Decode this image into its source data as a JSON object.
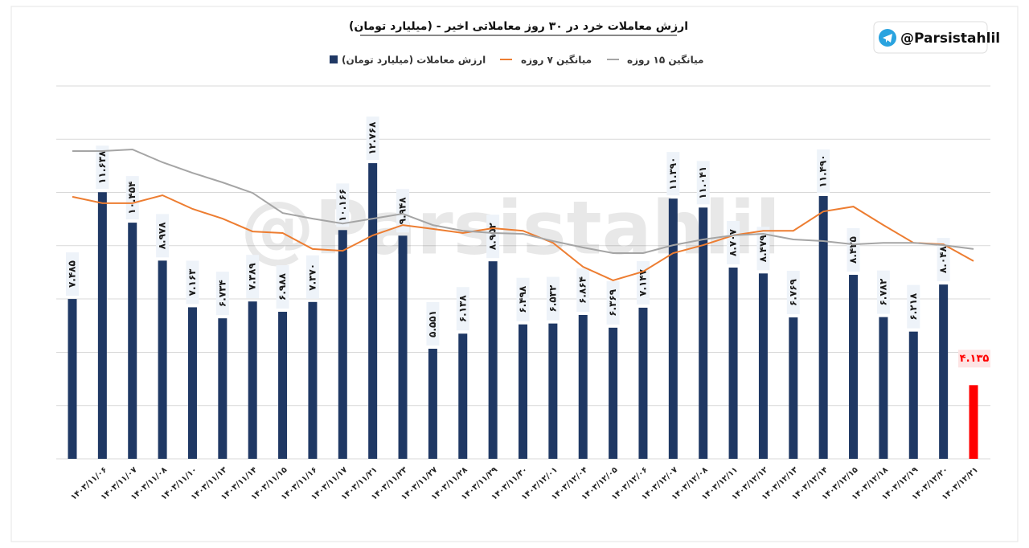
{
  "badge": "@Parsistahlil",
  "watermark": "@Parsistahlil",
  "chart_data": {
    "type": "bar",
    "title": "ارزش معاملات خرد در ۳۰ روز معاملاتی اخیر - (میلیارد تومان)",
    "categories": [
      null,
      "۱۴۰۳/۱۱/۰۶",
      "۱۴۰۳/۱۱/۰۷",
      "۱۴۰۳/۱۱/۰۸",
      "۱۴۰۳/۱۱/۱۰",
      "۱۴۰۳/۱۱/۱۳",
      "۱۴۰۳/۱۱/۱۴",
      "۱۴۰۳/۱۱/۱۵",
      "۱۴۰۳/۱۱/۱۶",
      "۱۴۰۳/۱۱/۱۷",
      "۱۴۰۳/۱۱/۲۱",
      "۱۴۰۳/۱۱/۲۳",
      "۱۴۰۳/۱۱/۲۷",
      "۱۴۰۳/۱۱/۲۸",
      "۱۴۰۳/۱۱/۲۹",
      "۱۴۰۳/۱۱/۳۰",
      "۱۴۰۳/۱۲/۰۱",
      "۱۴۰۳/۱۲/۰۴",
      "۱۴۰۳/۱۲/۰۵",
      "۱۴۰۳/۱۲/۰۶",
      "۱۴۰۳/۱۲/۰۷",
      "۱۴۰۳/۱۲/۰۸",
      "۱۴۰۳/۱۲/۱۱",
      "۱۴۰۳/۱۲/۱۲",
      "۱۴۰۳/۱۲/۱۳",
      "۱۴۰۳/۱۲/۱۴",
      "۱۴۰۳/۱۲/۱۵",
      "۱۴۰۳/۱۲/۱۸",
      "۱۴۰۳/۱۲/۱۹",
      "۱۴۰۳/۱۲/۲۰",
      "۱۴۰۳/۱۲/۲۱"
    ],
    "series": [
      {
        "name": "ارزش معاملات (میلیارد تومان)",
        "type": "bar",
        "color": "#1f3864",
        "colors": [
          "#1f3864",
          "#1f3864",
          "#1f3864",
          "#1f3864",
          "#1f3864",
          "#1f3864",
          "#1f3864",
          "#1f3864",
          "#1f3864",
          "#1f3864",
          "#1f3864",
          "#1f3864",
          "#1f3864",
          "#1f3864",
          "#1f3864",
          "#1f3864",
          "#1f3864",
          "#1f3864",
          "#1f3864",
          "#1f3864",
          "#1f3864",
          "#1f3864",
          "#1f3864",
          "#1f3864",
          "#1f3864",
          "#1f3864",
          "#1f3864",
          "#1f3864",
          "#1f3864",
          "#1f3864",
          "#ff0000"
        ],
        "values": [
          7.485,
          11.638,
          10.454,
          8.978,
          7.163,
          6.734,
          7.389,
          6.988,
          7.37,
          10.166,
          12.768,
          9.948,
          5.551,
          6.138,
          8.952,
          6.498,
          6.532,
          6.864,
          6.369,
          7.147,
          11.39,
          11.041,
          8.707,
          8.479,
          6.769,
          11.49,
          8.425,
          6.782,
          6.218,
          8.048,
          4.135
        ],
        "value_labels": [
          "۷.۴۸۵",
          "۱۱.۶۳۸",
          "۱۰.۴۵۴",
          "۸.۹۷۸",
          "۷.۱۶۳",
          "۶.۷۳۴",
          "۷.۳۸۹",
          "۶.۹۸۸",
          "۷.۳۷۰",
          "۱۰.۱۶۶",
          "۱۲.۷۶۸",
          "۹.۹۴۸",
          "۵.۵۵۱",
          "۶.۱۳۸",
          "۸.۹۵۲",
          "۶.۴۹۸",
          "۶.۵۳۲",
          "۶.۸۶۴",
          "۶.۳۶۹",
          "۷.۱۴۷",
          "۱۱.۳۹۰",
          "۱۱.۰۴۱",
          "۸.۷۰۷",
          "۸.۴۷۹",
          "۶.۷۶۹",
          "۱۱.۴۹۰",
          "۸.۴۲۵",
          "۶.۷۸۲",
          "۶.۲۱۸",
          "۸.۰۴۸",
          "۴.۱۳۵"
        ]
      },
      {
        "name": "میانگین ۷ روزه",
        "type": "line",
        "color": "#ed7d31",
        "values": [
          11.46,
          11.21,
          11.21,
          11.52,
          10.99,
          10.61,
          10.11,
          10.05,
          9.43,
          9.36,
          9.96,
          10.36,
          10.21,
          10.05,
          10.24,
          10.14,
          9.67,
          8.74,
          8.21,
          8.55,
          9.27,
          9.58,
          9.96,
          10.14,
          10.14,
          10.89,
          11.08,
          10.36,
          9.67,
          9.61,
          8.96
        ]
      },
      {
        "name": "میانگین ۱۵ روزه",
        "type": "line",
        "color": "#a5a5a5",
        "values": [
          13.24,
          13.24,
          13.3,
          12.8,
          12.39,
          12.02,
          11.61,
          10.83,
          10.61,
          10.42,
          10.61,
          10.8,
          10.36,
          10.14,
          10.05,
          10.02,
          9.74,
          9.49,
          9.27,
          9.27,
          9.58,
          9.8,
          9.96,
          10.02,
          9.8,
          9.74,
          9.61,
          9.67,
          9.67,
          9.58,
          9.43
        ]
      }
    ],
    "ylim": [
      1.27,
      15.77
    ],
    "yticks": [
      1.27,
      3.34,
      5.41,
      7.49,
      9.56,
      11.63,
      13.7,
      15.77
    ],
    "grid": true
  }
}
